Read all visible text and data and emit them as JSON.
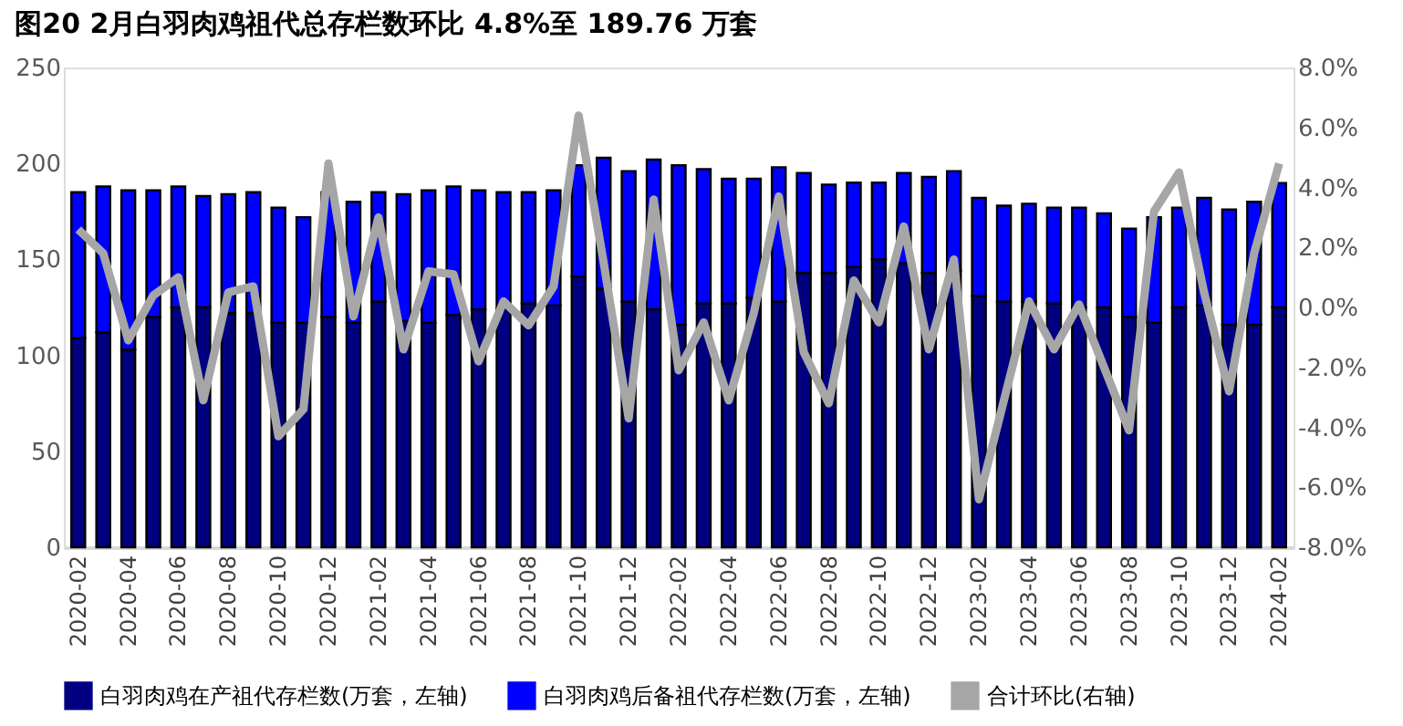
{
  "chart_data": {
    "type": "bar",
    "title": "图20 2月白羽肉鸡祖代总存栏数环比 4.8%至 189.76 万套",
    "stacked": true,
    "legend": "bottom",
    "grid": false,
    "categories": [
      "2020-02",
      null,
      "2020-04",
      null,
      "2020-06",
      null,
      "2020-08",
      null,
      "2020-10",
      null,
      "2020-12",
      null,
      "2021-02",
      null,
      "2021-04",
      null,
      "2021-06",
      null,
      "2021-08",
      null,
      "2021-10",
      null,
      "2021-12",
      null,
      "2022-02",
      null,
      "2022-04",
      null,
      "2022-06",
      null,
      "2022-08",
      null,
      "2022-10",
      null,
      "2022-12",
      null,
      "2023-02",
      null,
      "2023-04",
      null,
      "2023-06",
      null,
      "2023-08",
      null,
      "2023-10",
      null,
      "2023-12",
      null,
      "2024-02"
    ],
    "ylim": [
      0,
      250
    ],
    "yticks": [
      0,
      50,
      100,
      150,
      200,
      250
    ],
    "y2lim": [
      -8,
      8
    ],
    "y2ticks": [
      {
        "value": -8,
        "label": "-8.0%"
      },
      {
        "value": -6,
        "label": "-6.0%"
      },
      {
        "value": -4,
        "label": "-4.0%"
      },
      {
        "value": -2,
        "label": "-2.0%"
      },
      {
        "value": 0,
        "label": "0.0%"
      },
      {
        "value": 2,
        "label": "2.0%"
      },
      {
        "value": 4,
        "label": "4.0%"
      },
      {
        "value": 6,
        "label": "6.0%"
      },
      {
        "value": 8,
        "label": "8.0%"
      }
    ],
    "series": [
      {
        "name": "白羽肉鸡在产祖代存栏数(万套，左轴)",
        "color": "#000080",
        "values": [
          109,
          112,
          103,
          120,
          125,
          125,
          122,
          122,
          117,
          117,
          120,
          117,
          128,
          118,
          117,
          121,
          124,
          124,
          127,
          126,
          141,
          135,
          128,
          124,
          116,
          127,
          127,
          130,
          128,
          143,
          143,
          146,
          150,
          148,
          143,
          144,
          131,
          128,
          128,
          127,
          125,
          125,
          120,
          117,
          125,
          126,
          116,
          116,
          125
        ]
      },
      {
        "name": "白羽肉鸡后备祖代存栏数(万套，左轴)",
        "color": "#0000ff",
        "values": [
          76,
          76,
          83,
          66,
          63,
          58,
          62,
          63,
          60,
          55,
          65,
          63,
          57,
          66,
          69,
          67,
          62,
          61,
          58,
          60,
          58,
          68,
          68,
          78,
          83,
          70,
          65,
          62,
          70,
          52,
          46,
          44,
          40,
          47,
          50,
          52,
          51,
          50,
          51,
          50,
          52,
          49,
          46,
          55,
          52,
          56,
          60,
          64,
          64.76
        ]
      },
      {
        "name": "合计环比(右轴)",
        "type": "line",
        "axis": "y2",
        "color": "#a6a6a6",
        "values": [
          2.6,
          1.8,
          -1.1,
          0.4,
          1.0,
          -3.1,
          0.5,
          0.7,
          -4.3,
          -3.4,
          4.8,
          -0.3,
          3.0,
          -1.4,
          1.2,
          1.1,
          -1.8,
          0.2,
          -0.6,
          0.7,
          6.4,
          1.5,
          -3.7,
          3.6,
          -2.1,
          -0.5,
          -3.1,
          -0.2,
          3.7,
          -1.5,
          -3.2,
          0.9,
          -0.5,
          2.7,
          -1.4,
          1.6,
          -6.4,
          -3.1,
          0.2,
          -1.4,
          0.1,
          -2.0,
          -4.1,
          3.2,
          4.5,
          0.5,
          -2.8,
          1.8,
          4.8
        ]
      }
    ]
  }
}
